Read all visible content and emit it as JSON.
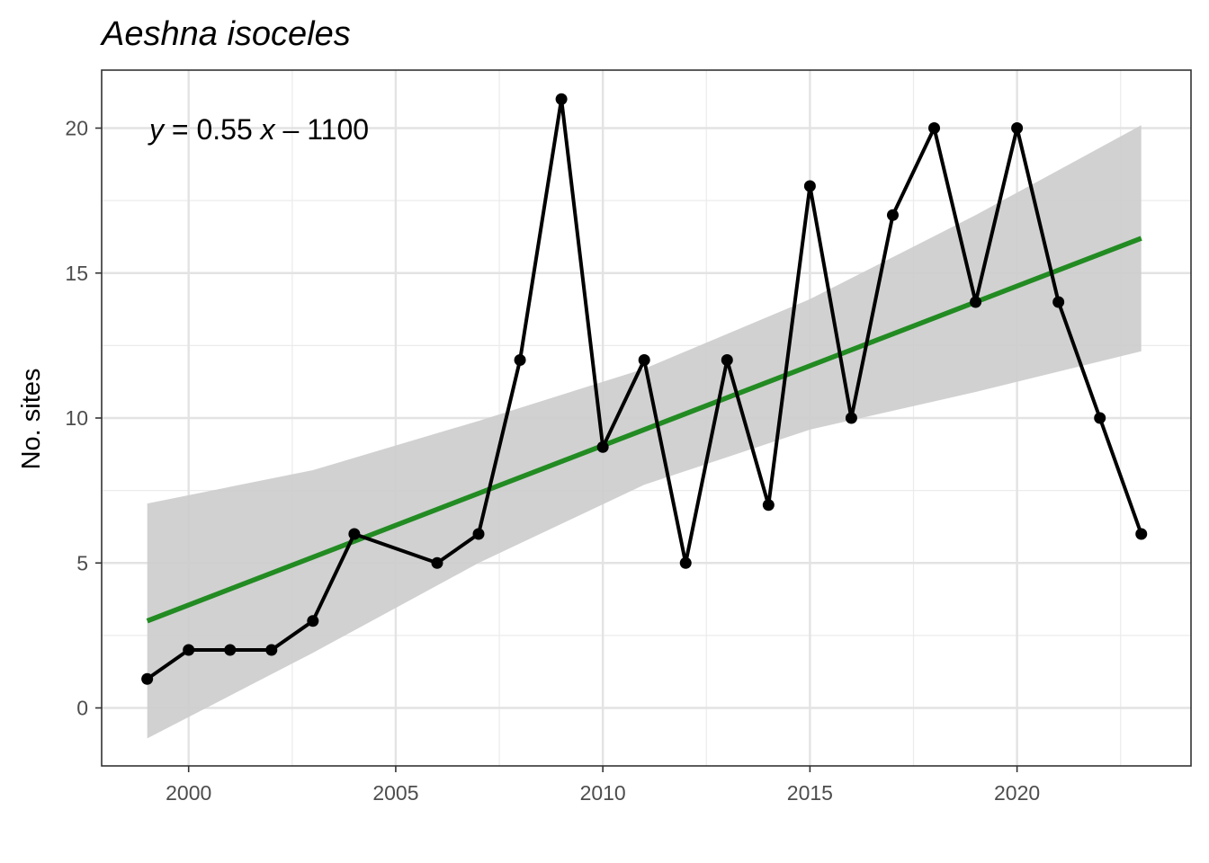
{
  "chart_data": {
    "type": "line",
    "title": "Aeshna isoceles",
    "xlabel": "",
    "ylabel": "No. sites",
    "xlim": [
      1997.9,
      2024.2
    ],
    "ylim": [
      -2.0,
      22.0
    ],
    "x_ticks": [
      2000,
      2005,
      2010,
      2015,
      2020
    ],
    "y_ticks": [
      0,
      5,
      10,
      15,
      20
    ],
    "grid": true,
    "legend": "none",
    "series": [
      {
        "x": [
          1999,
          2000,
          2001,
          2002,
          2003,
          2004,
          2006,
          2007,
          2008,
          2009,
          2010,
          2011,
          2012,
          2013,
          2014,
          2015,
          2016,
          2017,
          2018,
          2019,
          2020,
          2021,
          2022,
          2023
        ],
        "y": [
          1,
          2,
          2,
          2,
          3,
          6,
          5,
          6,
          12,
          21,
          9,
          12,
          5,
          12,
          7,
          18,
          10,
          17,
          20,
          14,
          20,
          14,
          10,
          6
        ],
        "color": "#000000"
      }
    ],
    "trend": {
      "color": "#228b22",
      "x": [
        1999,
        2023
      ],
      "y": [
        3.0,
        16.2
      ]
    },
    "confidence_band": {
      "color": "#cccccc",
      "x": [
        1999,
        2003,
        2007,
        2011,
        2015,
        2019,
        2023
      ],
      "lower": [
        -1.05,
        1.9,
        5.0,
        7.7,
        9.6,
        10.9,
        12.3
      ],
      "upper": [
        7.05,
        8.2,
        9.9,
        11.7,
        14.1,
        17.0,
        20.1
      ]
    },
    "annotation": {
      "y_var": "y",
      "x_var": "x",
      "equals": " = 0.55 ",
      "minus": " – 1100"
    }
  }
}
